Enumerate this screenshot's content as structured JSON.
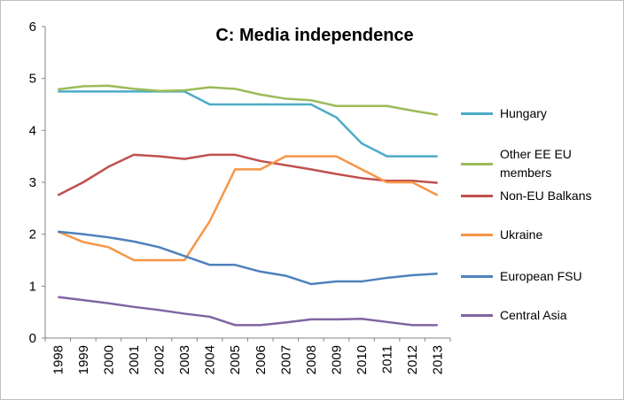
{
  "chart_data": {
    "type": "line",
    "title": "C: Media independence",
    "categories": [
      "1998",
      "1999",
      "2000",
      "2001",
      "2002",
      "2003",
      "2004",
      "2005",
      "2006",
      "2007",
      "2008",
      "2009",
      "2010",
      "2011",
      "2012",
      "2013"
    ],
    "ylim": [
      0,
      6
    ],
    "yticks": [
      0,
      1,
      2,
      3,
      4,
      5,
      6
    ],
    "grid": false,
    "legend": "right",
    "series": [
      {
        "name": "Hungary",
        "color": "#4bacc6",
        "values": [
          4.75,
          4.75,
          4.75,
          4.75,
          4.75,
          4.75,
          4.5,
          4.5,
          4.5,
          4.5,
          4.5,
          4.25,
          3.75,
          3.5,
          3.5,
          3.5
        ]
      },
      {
        "name": "Other EE EU members",
        "color": "#9bbb59",
        "values": [
          4.79,
          4.85,
          4.86,
          4.8,
          4.76,
          4.77,
          4.83,
          4.8,
          4.69,
          4.61,
          4.58,
          4.47,
          4.47,
          4.47,
          4.38,
          4.3
        ]
      },
      {
        "name": "Non-EU Balkans",
        "color": "#c0504d",
        "values": [
          2.75,
          3.0,
          3.3,
          3.53,
          3.5,
          3.45,
          3.53,
          3.53,
          3.41,
          3.33,
          3.25,
          3.16,
          3.08,
          3.03,
          3.03,
          2.99
        ]
      },
      {
        "name": "Ukraine",
        "color": "#f79646",
        "values": [
          2.05,
          1.85,
          1.75,
          1.5,
          1.5,
          1.5,
          2.25,
          3.25,
          3.25,
          3.5,
          3.5,
          3.5,
          3.25,
          3.0,
          3.0,
          2.75
        ]
      },
      {
        "name": "European FSU",
        "color": "#4f81bd",
        "values": [
          2.05,
          2.0,
          1.94,
          1.86,
          1.75,
          1.58,
          1.41,
          1.41,
          1.28,
          1.2,
          1.04,
          1.09,
          1.09,
          1.16,
          1.21,
          1.24
        ]
      },
      {
        "name": "Central Asia",
        "color": "#8064a2",
        "values": [
          0.79,
          0.73,
          0.67,
          0.6,
          0.54,
          0.47,
          0.41,
          0.25,
          0.25,
          0.3,
          0.36,
          0.36,
          0.37,
          0.31,
          0.25,
          0.25
        ]
      }
    ]
  }
}
